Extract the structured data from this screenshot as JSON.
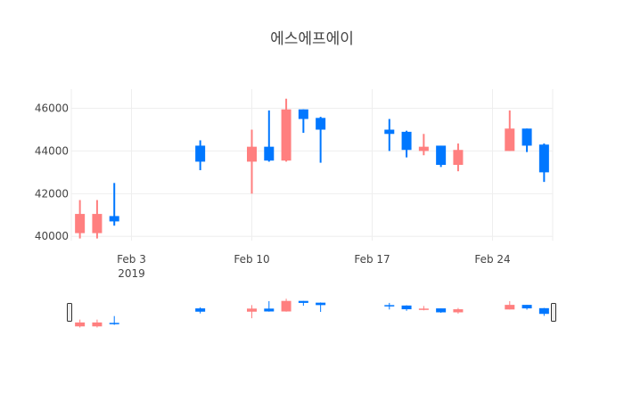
{
  "chart_data": {
    "type": "candlestick",
    "title": "에스에프에이",
    "xlabel": "",
    "ylabel": "",
    "ylim": [
      39800,
      46900
    ],
    "x_ticks": [
      {
        "date": "2019-02-03",
        "label": "Feb 3",
        "sublabel": "2019"
      },
      {
        "date": "2019-02-10",
        "label": "Feb 10",
        "sublabel": ""
      },
      {
        "date": "2019-02-17",
        "label": "Feb 17",
        "sublabel": ""
      },
      {
        "date": "2019-02-24",
        "label": "Feb 24",
        "sublabel": ""
      }
    ],
    "y_ticks": [
      40000,
      42000,
      44000,
      46000
    ],
    "y_tick_labels": [
      "40000",
      "42000",
      "44000",
      "46000"
    ],
    "increasing_color": "#0077ff",
    "decreasing_color": "#ff7f7f",
    "grid": true,
    "rangeslider": true,
    "candles": [
      {
        "date": "2019-01-31",
        "open": 41050,
        "high": 41700,
        "low": 39900,
        "close": 40150
      },
      {
        "date": "2019-02-01",
        "open": 41050,
        "high": 41700,
        "low": 39900,
        "close": 40150
      },
      {
        "date": "2019-02-02",
        "open": 40700,
        "high": 42500,
        "low": 40500,
        "close": 40950
      },
      {
        "date": "2019-02-07",
        "open": 43500,
        "high": 44500,
        "low": 43100,
        "close": 44250
      },
      {
        "date": "2019-02-10",
        "open": 44200,
        "high": 45000,
        "low": 42000,
        "close": 43500
      },
      {
        "date": "2019-02-11",
        "open": 43550,
        "high": 45900,
        "low": 43500,
        "close": 44200
      },
      {
        "date": "2019-02-12",
        "open": 45950,
        "high": 46450,
        "low": 43500,
        "close": 43550
      },
      {
        "date": "2019-02-13",
        "open": 45500,
        "high": 45950,
        "low": 44850,
        "close": 45950
      },
      {
        "date": "2019-02-14",
        "open": 45000,
        "high": 45600,
        "low": 43450,
        "close": 45550
      },
      {
        "date": "2019-02-18",
        "open": 44800,
        "high": 45500,
        "low": 44000,
        "close": 45000
      },
      {
        "date": "2019-02-19",
        "open": 44050,
        "high": 44950,
        "low": 43700,
        "close": 44900
      },
      {
        "date": "2019-02-20",
        "open": 44200,
        "high": 44800,
        "low": 43800,
        "close": 44000
      },
      {
        "date": "2019-02-21",
        "open": 43350,
        "high": 44250,
        "low": 43250,
        "close": 44250
      },
      {
        "date": "2019-02-22",
        "open": 44050,
        "high": 44350,
        "low": 43050,
        "close": 43350
      },
      {
        "date": "2019-02-25",
        "open": 45050,
        "high": 45900,
        "low": 44000,
        "close": 44000
      },
      {
        "date": "2019-02-26",
        "open": 44250,
        "high": 45050,
        "low": 43950,
        "close": 45050
      },
      {
        "date": "2019-02-27",
        "open": 43000,
        "high": 44350,
        "low": 42550,
        "close": 44300
      }
    ]
  }
}
